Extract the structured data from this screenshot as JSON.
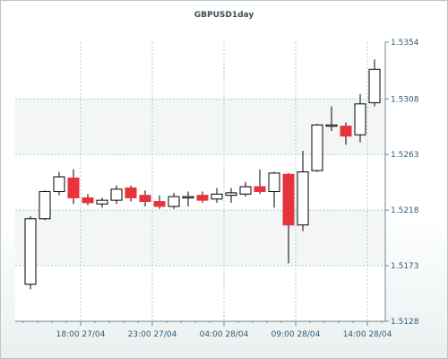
{
  "chart_data": {
    "type": "candlestick",
    "title": "GBPUSD1day",
    "y_ticks": [
      "1.5354",
      "1.5308",
      "1.5263",
      "1.5218",
      "1.5173",
      "1.5128"
    ],
    "x_ticks": [
      "18:00 27/04",
      "23:00 27/04",
      "04:00 28/04",
      "09:00 28/04",
      "14:00 28/04"
    ],
    "ylim": [
      1.5128,
      1.5354
    ],
    "grid": true,
    "colors": {
      "up": "#ffffff",
      "down": "#e8323c",
      "wick": "#000000",
      "grid": "#9ed3d8"
    },
    "candles": [
      {
        "o": 1.5158,
        "h": 1.5213,
        "l": 1.5154,
        "c": 1.5211
      },
      {
        "o": 1.5211,
        "h": 1.5234,
        "l": 1.521,
        "c": 1.5233
      },
      {
        "o": 1.5233,
        "h": 1.5249,
        "l": 1.523,
        "c": 1.5245
      },
      {
        "o": 1.5244,
        "h": 1.5251,
        "l": 1.5223,
        "c": 1.5228
      },
      {
        "o": 1.5228,
        "h": 1.5231,
        "l": 1.5222,
        "c": 1.5224
      },
      {
        "o": 1.5223,
        "h": 1.5228,
        "l": 1.522,
        "c": 1.5226
      },
      {
        "o": 1.5226,
        "h": 1.5238,
        "l": 1.5223,
        "c": 1.5235
      },
      {
        "o": 1.5236,
        "h": 1.5238,
        "l": 1.5225,
        "c": 1.5228
      },
      {
        "o": 1.523,
        "h": 1.5234,
        "l": 1.5221,
        "c": 1.5225
      },
      {
        "o": 1.5225,
        "h": 1.523,
        "l": 1.5219,
        "c": 1.5221
      },
      {
        "o": 1.5221,
        "h": 1.5232,
        "l": 1.5219,
        "c": 1.5229
      },
      {
        "o": 1.5229,
        "h": 1.5233,
        "l": 1.5221,
        "c": 1.5229
      },
      {
        "o": 1.523,
        "h": 1.5233,
        "l": 1.5224,
        "c": 1.5226
      },
      {
        "o": 1.5227,
        "h": 1.5236,
        "l": 1.5224,
        "c": 1.5231
      },
      {
        "o": 1.523,
        "h": 1.5236,
        "l": 1.5224,
        "c": 1.5232
      },
      {
        "o": 1.5231,
        "h": 1.5241,
        "l": 1.5229,
        "c": 1.5237
      },
      {
        "o": 1.5237,
        "h": 1.5251,
        "l": 1.5231,
        "c": 1.5233
      },
      {
        "o": 1.5233,
        "h": 1.5249,
        "l": 1.522,
        "c": 1.5248
      },
      {
        "o": 1.5247,
        "h": 1.5248,
        "l": 1.5175,
        "c": 1.5206
      },
      {
        "o": 1.5206,
        "h": 1.5266,
        "l": 1.5201,
        "c": 1.5249
      },
      {
        "o": 1.525,
        "h": 1.5288,
        "l": 1.5249,
        "c": 1.5287
      },
      {
        "o": 1.5287,
        "h": 1.5302,
        "l": 1.5282,
        "c": 1.5287
      },
      {
        "o": 1.5286,
        "h": 1.5289,
        "l": 1.5271,
        "c": 1.5278
      },
      {
        "o": 1.5279,
        "h": 1.5312,
        "l": 1.5273,
        "c": 1.5304
      },
      {
        "o": 1.5305,
        "h": 1.534,
        "l": 1.5302,
        "c": 1.5332
      }
    ]
  }
}
